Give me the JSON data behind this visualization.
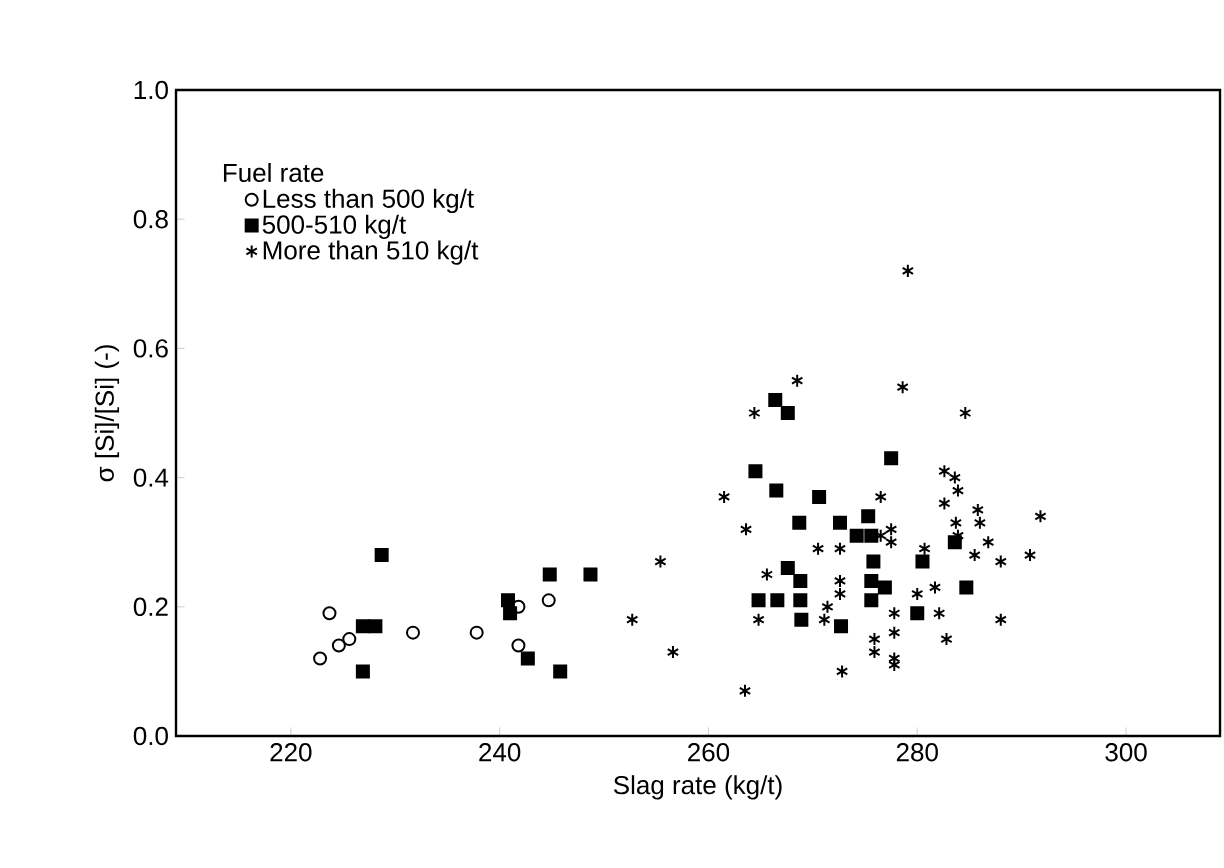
{
  "chart_data": {
    "type": "scatter",
    "xlabel": "Slag rate (kg/t)",
    "ylabel": "σ [Si]/[Si] (-)",
    "legend_title": "Fuel rate",
    "legend": "top left",
    "grid": false,
    "xlim": [
      209,
      309
    ],
    "xticks": [
      220,
      240,
      260,
      280,
      300
    ],
    "ylim": [
      0,
      1
    ],
    "yticks": [
      {
        "value": 0,
        "label": "0.0"
      },
      {
        "value": 0.2,
        "label": "0.2"
      },
      {
        "value": 0.4,
        "label": "0.4"
      },
      {
        "value": 0.6,
        "label": "0.6"
      },
      {
        "value": 0.8,
        "label": "0.8"
      },
      {
        "value": 1,
        "label": "1.0"
      }
    ],
    "series": [
      {
        "name": "Less than 500 kg/t",
        "color": "#000000",
        "marker": "circle",
        "x": [
          223.7,
          222.8,
          224.6,
          225.6,
          231.7,
          237.8,
          241.8,
          241.8,
          244.7
        ],
        "values": [
          0.19,
          0.12,
          0.14,
          0.15,
          0.16,
          0.16,
          0.2,
          0.14,
          0.21
        ]
      },
      {
        "name": "500-510 kg/t",
        "color": "#000000",
        "marker": "square",
        "x": [
          228.7,
          226.9,
          228.1,
          226.9,
          240.8,
          241,
          242.7,
          244.8,
          248.7,
          245.8,
          266.4,
          267.6,
          264.5,
          266.5,
          270.6,
          268.7,
          272.6,
          275.3,
          274.2,
          275.6,
          277.5,
          275.8,
          267.6,
          268.8,
          268.8,
          264.8,
          266.6,
          268.9,
          272.7,
          275.6,
          275.6,
          276.9,
          280.5,
          283.6,
          284.7,
          280
        ],
        "values": [
          0.28,
          0.17,
          0.17,
          0.1,
          0.21,
          0.19,
          0.12,
          0.25,
          0.25,
          0.1,
          0.52,
          0.5,
          0.41,
          0.38,
          0.37,
          0.33,
          0.33,
          0.34,
          0.31,
          0.31,
          0.43,
          0.27,
          0.26,
          0.24,
          0.21,
          0.21,
          0.21,
          0.18,
          0.17,
          0.24,
          0.21,
          0.23,
          0.27,
          0.3,
          0.23,
          0.19
        ]
      },
      {
        "name": "More than 510 kg/t",
        "color": "#000000",
        "marker": "cross",
        "x": [
          252.7,
          268.5,
          264.4,
          261.5,
          263.6,
          255.4,
          256.6,
          263.5,
          265.6,
          264.8,
          270.5,
          272.6,
          272.6,
          272.6,
          271.4,
          271.1,
          272.8,
          276.5,
          277.5,
          276.5,
          278.6,
          275.9,
          275.9,
          277.8,
          277.8,
          279.1,
          284.6,
          282.6,
          283.6,
          282.6,
          283.9,
          283.7,
          285.8,
          286,
          283.9,
          286.8,
          285.5,
          288,
          291.8,
          290.8,
          280.7,
          281.7,
          280,
          282.1,
          277.8,
          282.8,
          288,
          277.8,
          277.5
        ],
        "values": [
          0.18,
          0.55,
          0.5,
          0.37,
          0.32,
          0.27,
          0.13,
          0.07,
          0.25,
          0.18,
          0.29,
          0.29,
          0.24,
          0.22,
          0.2,
          0.18,
          0.1,
          0.37,
          0.32,
          0.31,
          0.54,
          0.15,
          0.13,
          0.19,
          0.12,
          0.72,
          0.5,
          0.41,
          0.4,
          0.36,
          0.38,
          0.33,
          0.35,
          0.33,
          0.31,
          0.3,
          0.28,
          0.27,
          0.34,
          0.28,
          0.29,
          0.23,
          0.22,
          0.19,
          0.16,
          0.15,
          0.18,
          0.11,
          0.3
        ]
      }
    ]
  }
}
